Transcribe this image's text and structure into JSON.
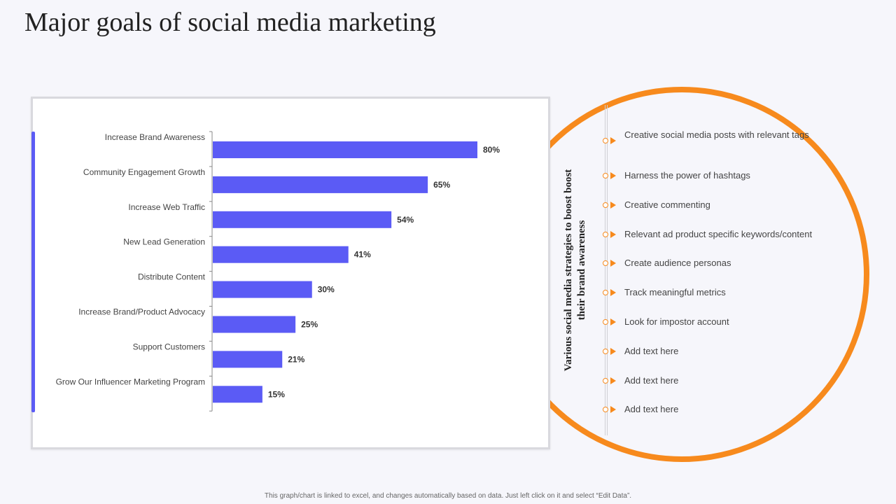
{
  "title": "Major goals of social media marketing",
  "chart_data": {
    "type": "bar",
    "orientation": "horizontal",
    "title": "",
    "xlabel": "",
    "ylabel": "",
    "categories": [
      "Increase Brand Awareness",
      "Community Engagement Growth",
      "Increase Web Traffic",
      "New Lead Generation",
      "Distribute Content",
      "Increase Brand/Product Advocacy",
      "Support Customers",
      "Grow Our Influencer Marketing Program"
    ],
    "values": [
      80,
      65,
      54,
      41,
      30,
      25,
      21,
      15
    ],
    "data_labels": [
      "80%",
      "65%",
      "54%",
      "41%",
      "30%",
      "25%",
      "21%",
      "15%"
    ],
    "xlim": [
      0,
      100
    ],
    "grid": false,
    "legend": "none",
    "bar_color": "#5b5bf5"
  },
  "strategies": {
    "heading": "Various social media strategies to boost boost their brand awareness",
    "items": [
      "Creative  social media posts with relevant  tags",
      "Harness  the power of hashtags",
      "Creative  commenting",
      "Relevant  ad product  specific keywords/content",
      "Create  audience  personas",
      "Track  meaningful  metrics",
      "Look for impostor account",
      "Add text here",
      "Add text here",
      "Add text here"
    ]
  },
  "colors": {
    "accent": "#5b5bf5",
    "ring": "#f78a1d"
  },
  "footer": "This graph/chart is linked to excel, and changes automatically based on data. Just left click on it and select “Edit Data”."
}
